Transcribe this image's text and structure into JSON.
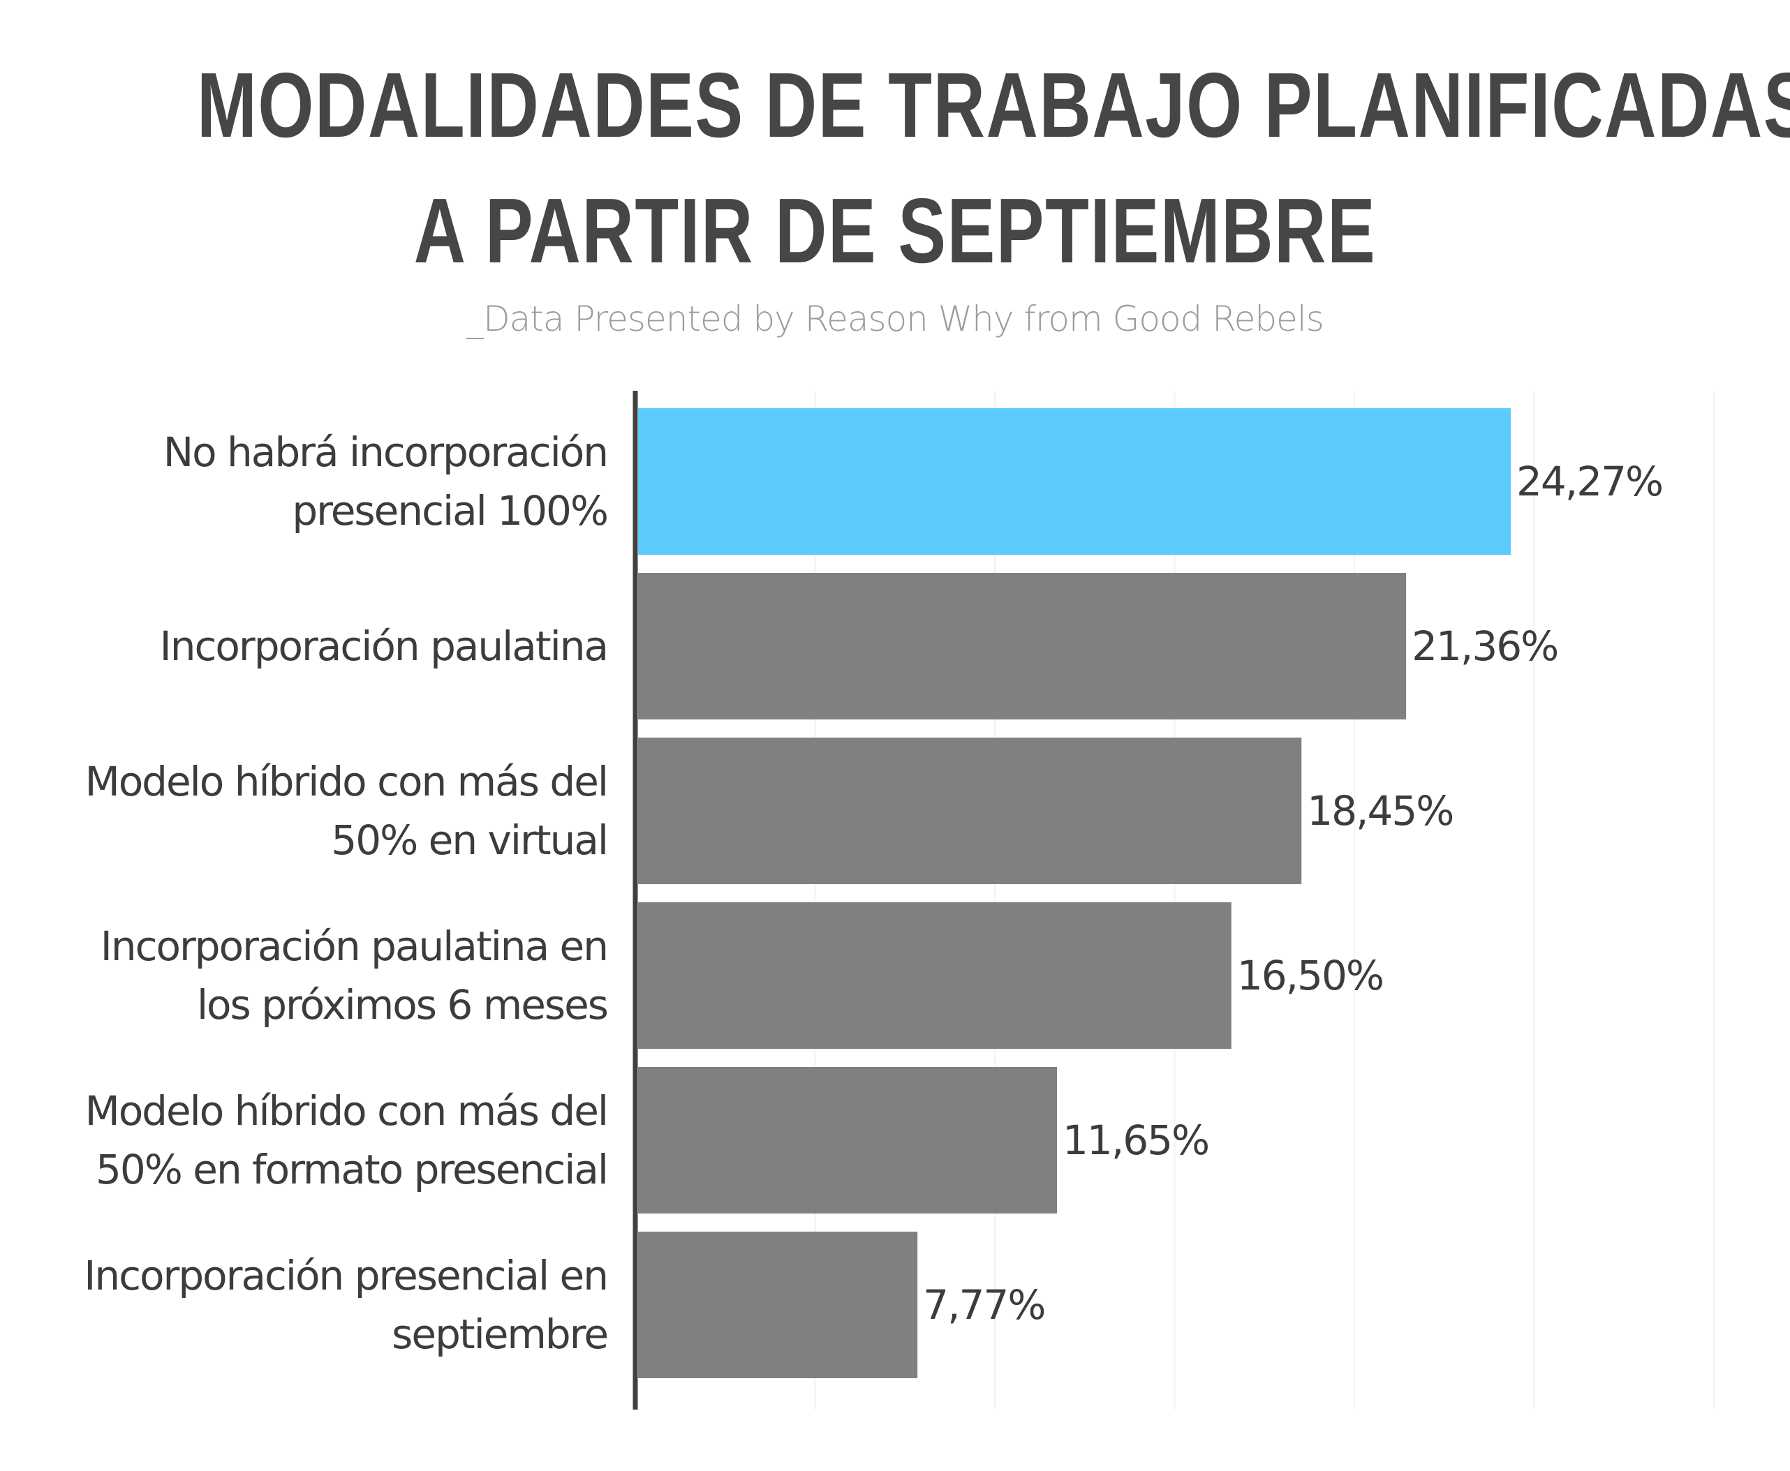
{
  "title_lines": [
    "MODALIDADES DE TRABAJO PLANIFICADAS",
    "A PARTIR DE SEPTIEMBRE"
  ],
  "subtitle": "_Data Presented by Reason Why from Good Rebels",
  "colors": {
    "highlight": "#5bccfc",
    "bar": "#808080",
    "axis": "#404040",
    "text": "#3c3c3c",
    "title": "#464646",
    "subtitle": "#9b9b9b",
    "grid": "#f2f2f2"
  },
  "chart_data": {
    "type": "bar",
    "orientation": "horizontal",
    "title": "MODALIDADES DE TRABAJO PLANIFICADAS A PARTIR DE SEPTIEMBRE",
    "xlabel": "",
    "ylabel": "",
    "xlim": [
      0,
      30
    ],
    "grid": true,
    "categories": [
      [
        "No habrá incorporación",
        "presencial 100%"
      ],
      [
        "Incorporación paulatina"
      ],
      [
        "Modelo híbrido con más del",
        "50% en virtual"
      ],
      [
        "Incorporación paulatina en",
        "los próximos 6 meses"
      ],
      [
        "Modelo híbrido con más del",
        "50% en formato presencial"
      ],
      [
        "Incorporación presencial en",
        "septiembre"
      ]
    ],
    "values": [
      24.27,
      21.36,
      18.45,
      16.5,
      11.65,
      7.77
    ],
    "value_labels": [
      "24,27%",
      "21,36%",
      "18,45%",
      "16,50%",
      "11,65%",
      "7,77%"
    ],
    "highlight_index": 0
  }
}
